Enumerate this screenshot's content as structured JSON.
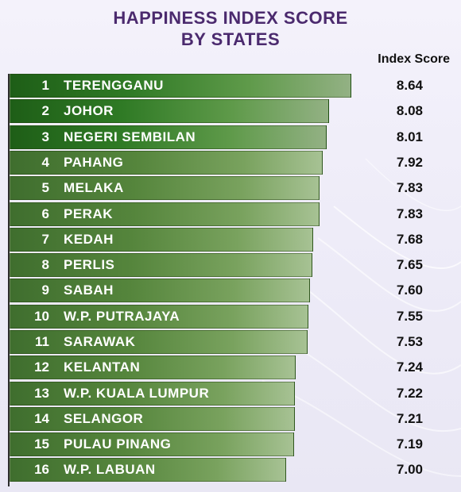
{
  "title_line1": "HAPPINESS INDEX SCORE",
  "title_line2": "BY STATES",
  "column_header": "Index Score",
  "colors": {
    "title": "#4b2a6e",
    "bar_top3": "#2f7a25",
    "bar_rest": "#55853c"
  },
  "chart_data": {
    "type": "bar",
    "orientation": "horizontal",
    "title": "HAPPINESS INDEX SCORE BY STATES",
    "value_label": "Index Score",
    "xlim": [
      0,
      8.64
    ],
    "rows": [
      {
        "rank": "1",
        "state": "TERENGGANU",
        "score": "8.64",
        "value": 8.64
      },
      {
        "rank": "2",
        "state": "JOHOR",
        "score": "8.08",
        "value": 8.08
      },
      {
        "rank": "3",
        "state": "NEGERI SEMBILAN",
        "score": "8.01",
        "value": 8.01
      },
      {
        "rank": "4",
        "state": "PAHANG",
        "score": "7.92",
        "value": 7.92
      },
      {
        "rank": "5",
        "state": "MELAKA",
        "score": "7.83",
        "value": 7.83
      },
      {
        "rank": "6",
        "state": "PERAK",
        "score": "7.83",
        "value": 7.83
      },
      {
        "rank": "7",
        "state": "KEDAH",
        "score": "7.68",
        "value": 7.68
      },
      {
        "rank": "8",
        "state": "PERLIS",
        "score": "7.65",
        "value": 7.65
      },
      {
        "rank": "9",
        "state": "SABAH",
        "score": "7.60",
        "value": 7.6
      },
      {
        "rank": "10",
        "state": "W.P. PUTRAJAYA",
        "score": "7.55",
        "value": 7.55
      },
      {
        "rank": "11",
        "state": "SARAWAK",
        "score": "7.53",
        "value": 7.53
      },
      {
        "rank": "12",
        "state": "KELANTAN",
        "score": "7.24",
        "value": 7.24
      },
      {
        "rank": "13",
        "state": "W.P. KUALA LUMPUR",
        "score": "7.22",
        "value": 7.22
      },
      {
        "rank": "14",
        "state": "SELANGOR",
        "score": "7.21",
        "value": 7.21
      },
      {
        "rank": "15",
        "state": "PULAU PINANG",
        "score": "7.19",
        "value": 7.19
      },
      {
        "rank": "16",
        "state": "W.P. LABUAN",
        "score": "7.00",
        "value": 7.0
      }
    ]
  }
}
